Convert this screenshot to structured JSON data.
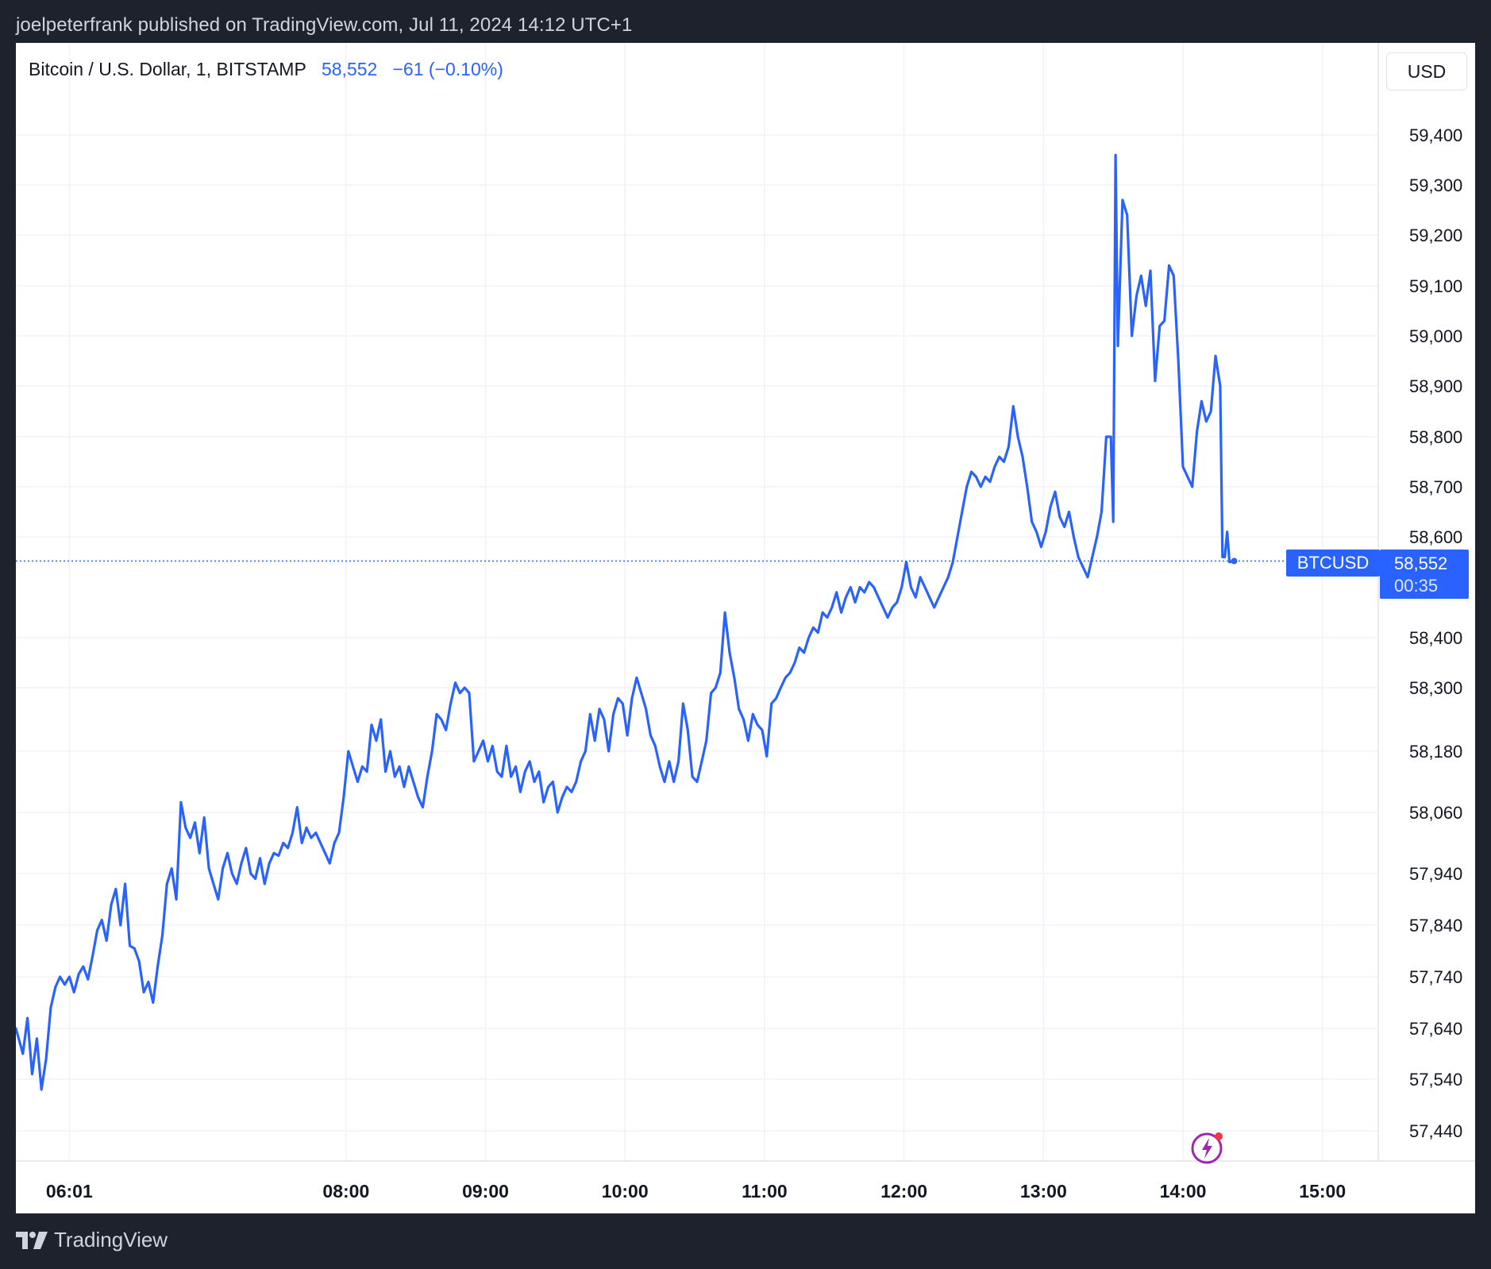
{
  "header": {
    "published_line": "joelpeterfrank published on TradingView.com, Jul 11, 2024 14:12 UTC+1"
  },
  "legend": {
    "symbol_description": "Bitcoin / U.S. Dollar, 1, BITSTAMP",
    "last_price": "58,552",
    "change": "−61 (−0.10%)"
  },
  "currency_button": {
    "label": "USD"
  },
  "price_label": {
    "symbol": "BTCUSD",
    "price": "58,552",
    "countdown": "00:35"
  },
  "footer": {
    "brand": "TradingView"
  },
  "icons": {
    "alert": "lightning-alert-icon",
    "brand": "tradingview-logo-icon"
  },
  "colors": {
    "line": "#2962ff",
    "grid": "#f0f3fa",
    "background_outer": "#1e222d",
    "alert_icon": "#9c27b0",
    "alert_dot": "#f23645"
  },
  "chart_data": {
    "type": "line",
    "title": "Bitcoin / U.S. Dollar, 1, BITSTAMP",
    "xlabel": "",
    "ylabel": "",
    "ylim": [
      57360,
      59520
    ],
    "y_ticks": [
      59400,
      59300,
      59200,
      59100,
      59000,
      58900,
      58800,
      58700,
      58600,
      58400,
      58300,
      58180,
      58060,
      57940,
      57840,
      57740,
      57640,
      57540,
      57440
    ],
    "y_tick_labels": [
      "59,400",
      "59,300",
      "59,200",
      "59,100",
      "59,000",
      "58,900",
      "58,800",
      "58,700",
      "58,600",
      "58,400",
      "58,300",
      "58,180",
      "58,060",
      "57,940",
      "57,840",
      "57,740",
      "57,640",
      "57,540",
      "57,440"
    ],
    "x_tick_labels": [
      {
        "label": "06:01",
        "t": "06:01",
        "bold": true
      },
      {
        "label": "08:00",
        "t": "08:00",
        "bold": true
      },
      {
        "label": "09:00",
        "t": "09:00",
        "bold": true
      },
      {
        "label": "10:00",
        "t": "10:00",
        "bold": true
      },
      {
        "label": "11:00",
        "t": "11:00",
        "bold": true
      },
      {
        "label": "12:00",
        "t": "12:00",
        "bold": true
      },
      {
        "label": "13:00",
        "t": "13:00",
        "bold": true
      },
      {
        "label": "14:00",
        "t": "14:00",
        "bold": true
      },
      {
        "label": "15:00",
        "t": "15:00",
        "bold": true
      }
    ],
    "x_range": [
      "05:38",
      "15:24"
    ],
    "grid": true,
    "last_price": 58552,
    "series": [
      {
        "name": "BTCUSD",
        "points": [
          [
            "05:38",
            57640
          ],
          [
            "05:41",
            57590
          ],
          [
            "05:43",
            57660
          ],
          [
            "05:45",
            57550
          ],
          [
            "05:47",
            57620
          ],
          [
            "05:49",
            57520
          ],
          [
            "05:51",
            57580
          ],
          [
            "05:53",
            57680
          ],
          [
            "05:55",
            57720
          ],
          [
            "05:57",
            57740
          ],
          [
            "05:59",
            57725
          ],
          [
            "06:01",
            57740
          ],
          [
            "06:03",
            57710
          ],
          [
            "06:05",
            57745
          ],
          [
            "06:07",
            57760
          ],
          [
            "06:09",
            57735
          ],
          [
            "06:11",
            57780
          ],
          [
            "06:13",
            57830
          ],
          [
            "06:15",
            57850
          ],
          [
            "06:17",
            57810
          ],
          [
            "06:19",
            57880
          ],
          [
            "06:21",
            57910
          ],
          [
            "06:23",
            57840
          ],
          [
            "06:25",
            57920
          ],
          [
            "06:27",
            57800
          ],
          [
            "06:29",
            57795
          ],
          [
            "06:31",
            57770
          ],
          [
            "06:33",
            57710
          ],
          [
            "06:35",
            57730
          ],
          [
            "06:37",
            57690
          ],
          [
            "06:39",
            57760
          ],
          [
            "06:41",
            57820
          ],
          [
            "06:43",
            57920
          ],
          [
            "06:45",
            57950
          ],
          [
            "06:47",
            57890
          ],
          [
            "06:49",
            58080
          ],
          [
            "06:51",
            58030
          ],
          [
            "06:53",
            58010
          ],
          [
            "06:55",
            58040
          ],
          [
            "06:57",
            57980
          ],
          [
            "06:59",
            58050
          ],
          [
            "07:01",
            57950
          ],
          [
            "07:03",
            57920
          ],
          [
            "07:05",
            57890
          ],
          [
            "07:07",
            57950
          ],
          [
            "07:09",
            57980
          ],
          [
            "07:11",
            57940
          ],
          [
            "07:13",
            57920
          ],
          [
            "07:15",
            57960
          ],
          [
            "07:17",
            57990
          ],
          [
            "07:19",
            57940
          ],
          [
            "07:21",
            57930
          ],
          [
            "07:23",
            57970
          ],
          [
            "07:25",
            57920
          ],
          [
            "07:27",
            57960
          ],
          [
            "07:29",
            57980
          ],
          [
            "07:31",
            57975
          ],
          [
            "07:33",
            58000
          ],
          [
            "07:35",
            57990
          ],
          [
            "07:37",
            58020
          ],
          [
            "07:39",
            58070
          ],
          [
            "07:41",
            58000
          ],
          [
            "07:43",
            58030
          ],
          [
            "07:45",
            58010
          ],
          [
            "07:47",
            58020
          ],
          [
            "07:49",
            58000
          ],
          [
            "07:51",
            57980
          ],
          [
            "07:53",
            57960
          ],
          [
            "07:55",
            58000
          ],
          [
            "07:57",
            58020
          ],
          [
            "07:59",
            58090
          ],
          [
            "08:01",
            58180
          ],
          [
            "08:03",
            58150
          ],
          [
            "08:05",
            58120
          ],
          [
            "08:07",
            58150
          ],
          [
            "08:09",
            58140
          ],
          [
            "08:11",
            58230
          ],
          [
            "08:13",
            58200
          ],
          [
            "08:15",
            58240
          ],
          [
            "08:17",
            58140
          ],
          [
            "08:19",
            58180
          ],
          [
            "08:21",
            58130
          ],
          [
            "08:23",
            58150
          ],
          [
            "08:25",
            58110
          ],
          [
            "08:27",
            58150
          ],
          [
            "08:29",
            58120
          ],
          [
            "08:31",
            58090
          ],
          [
            "08:33",
            58070
          ],
          [
            "08:35",
            58130
          ],
          [
            "08:37",
            58180
          ],
          [
            "08:39",
            58250
          ],
          [
            "08:41",
            58240
          ],
          [
            "08:43",
            58220
          ],
          [
            "08:45",
            58270
          ],
          [
            "08:47",
            58310
          ],
          [
            "08:49",
            58290
          ],
          [
            "08:51",
            58300
          ],
          [
            "08:53",
            58290
          ],
          [
            "08:55",
            58160
          ],
          [
            "08:57",
            58180
          ],
          [
            "08:59",
            58200
          ],
          [
            "09:01",
            58160
          ],
          [
            "09:03",
            58190
          ],
          [
            "09:05",
            58140
          ],
          [
            "09:07",
            58130
          ],
          [
            "09:09",
            58190
          ],
          [
            "09:11",
            58130
          ],
          [
            "09:13",
            58150
          ],
          [
            "09:15",
            58100
          ],
          [
            "09:17",
            58140
          ],
          [
            "09:19",
            58160
          ],
          [
            "09:21",
            58120
          ],
          [
            "09:23",
            58140
          ],
          [
            "09:25",
            58080
          ],
          [
            "09:27",
            58110
          ],
          [
            "09:29",
            58120
          ],
          [
            "09:31",
            58060
          ],
          [
            "09:33",
            58090
          ],
          [
            "09:35",
            58110
          ],
          [
            "09:37",
            58100
          ],
          [
            "09:39",
            58120
          ],
          [
            "09:41",
            58160
          ],
          [
            "09:43",
            58180
          ],
          [
            "09:45",
            58250
          ],
          [
            "09:47",
            58200
          ],
          [
            "09:49",
            58260
          ],
          [
            "09:51",
            58240
          ],
          [
            "09:53",
            58180
          ],
          [
            "09:55",
            58250
          ],
          [
            "09:57",
            58280
          ],
          [
            "09:59",
            58270
          ],
          [
            "10:01",
            58210
          ],
          [
            "10:03",
            58280
          ],
          [
            "10:05",
            58320
          ],
          [
            "10:07",
            58290
          ],
          [
            "10:09",
            58260
          ],
          [
            "10:11",
            58210
          ],
          [
            "10:13",
            58190
          ],
          [
            "10:15",
            58150
          ],
          [
            "10:17",
            58120
          ],
          [
            "10:19",
            58160
          ],
          [
            "10:21",
            58120
          ],
          [
            "10:23",
            58160
          ],
          [
            "10:25",
            58270
          ],
          [
            "10:27",
            58220
          ],
          [
            "10:29",
            58130
          ],
          [
            "10:31",
            58120
          ],
          [
            "10:33",
            58160
          ],
          [
            "10:35",
            58200
          ],
          [
            "10:37",
            58290
          ],
          [
            "10:39",
            58300
          ],
          [
            "10:41",
            58330
          ],
          [
            "10:43",
            58450
          ],
          [
            "10:45",
            58370
          ],
          [
            "10:47",
            58320
          ],
          [
            "10:49",
            58260
          ],
          [
            "10:51",
            58240
          ],
          [
            "10:53",
            58200
          ],
          [
            "10:55",
            58250
          ],
          [
            "10:57",
            58230
          ],
          [
            "10:59",
            58220
          ],
          [
            "11:01",
            58170
          ],
          [
            "11:03",
            58270
          ],
          [
            "11:05",
            58280
          ],
          [
            "11:07",
            58300
          ],
          [
            "11:09",
            58320
          ],
          [
            "11:11",
            58330
          ],
          [
            "11:13",
            58350
          ],
          [
            "11:15",
            58380
          ],
          [
            "11:17",
            58370
          ],
          [
            "11:19",
            58400
          ],
          [
            "11:21",
            58420
          ],
          [
            "11:23",
            58410
          ],
          [
            "11:25",
            58450
          ],
          [
            "11:27",
            58440
          ],
          [
            "11:29",
            58460
          ],
          [
            "11:31",
            58490
          ],
          [
            "11:33",
            58450
          ],
          [
            "11:35",
            58480
          ],
          [
            "11:37",
            58500
          ],
          [
            "11:39",
            58470
          ],
          [
            "11:41",
            58500
          ],
          [
            "11:43",
            58490
          ],
          [
            "11:45",
            58510
          ],
          [
            "11:47",
            58500
          ],
          [
            "11:49",
            58480
          ],
          [
            "11:51",
            58460
          ],
          [
            "11:53",
            58440
          ],
          [
            "11:55",
            58460
          ],
          [
            "11:57",
            58470
          ],
          [
            "11:59",
            58500
          ],
          [
            "12:01",
            58550
          ],
          [
            "12:03",
            58500
          ],
          [
            "12:05",
            58480
          ],
          [
            "12:07",
            58520
          ],
          [
            "12:09",
            58500
          ],
          [
            "12:11",
            58480
          ],
          [
            "12:13",
            58460
          ],
          [
            "12:15",
            58480
          ],
          [
            "12:17",
            58500
          ],
          [
            "12:19",
            58520
          ],
          [
            "12:21",
            58550
          ],
          [
            "12:23",
            58600
          ],
          [
            "12:25",
            58650
          ],
          [
            "12:27",
            58700
          ],
          [
            "12:29",
            58730
          ],
          [
            "12:31",
            58720
          ],
          [
            "12:33",
            58700
          ],
          [
            "12:35",
            58720
          ],
          [
            "12:37",
            58710
          ],
          [
            "12:39",
            58740
          ],
          [
            "12:41",
            58760
          ],
          [
            "12:43",
            58750
          ],
          [
            "12:45",
            58780
          ],
          [
            "12:47",
            58860
          ],
          [
            "12:49",
            58800
          ],
          [
            "12:51",
            58760
          ],
          [
            "12:53",
            58700
          ],
          [
            "12:55",
            58630
          ],
          [
            "12:57",
            58610
          ],
          [
            "12:59",
            58580
          ],
          [
            "13:01",
            58610
          ],
          [
            "13:03",
            58660
          ],
          [
            "13:05",
            58690
          ],
          [
            "13:07",
            58640
          ],
          [
            "13:09",
            58620
          ],
          [
            "13:11",
            58650
          ],
          [
            "13:13",
            58600
          ],
          [
            "13:15",
            58560
          ],
          [
            "13:17",
            58540
          ],
          [
            "13:19",
            58520
          ],
          [
            "13:21",
            58560
          ],
          [
            "13:23",
            58600
          ],
          [
            "13:25",
            58650
          ],
          [
            "13:27",
            58800
          ],
          [
            "13:29",
            58800
          ],
          [
            "13:30",
            58630
          ],
          [
            "13:31",
            59360
          ],
          [
            "13:32",
            58980
          ],
          [
            "13:34",
            59270
          ],
          [
            "13:36",
            59240
          ],
          [
            "13:38",
            59000
          ],
          [
            "13:40",
            59080
          ],
          [
            "13:42",
            59120
          ],
          [
            "13:44",
            59060
          ],
          [
            "13:46",
            59130
          ],
          [
            "13:48",
            58910
          ],
          [
            "13:50",
            59020
          ],
          [
            "13:52",
            59030
          ],
          [
            "13:54",
            59140
          ],
          [
            "13:56",
            59120
          ],
          [
            "13:58",
            58950
          ],
          [
            "14:00",
            58740
          ],
          [
            "14:02",
            58720
          ],
          [
            "14:04",
            58700
          ],
          [
            "14:06",
            58810
          ],
          [
            "14:08",
            58870
          ],
          [
            "14:10",
            58830
          ],
          [
            "14:12",
            58850
          ],
          [
            "14:14",
            58960
          ],
          [
            "14:16",
            58900
          ],
          [
            "14:17",
            58560
          ],
          [
            "14:18",
            58560
          ],
          [
            "14:19",
            58610
          ],
          [
            "14:20",
            58550
          ],
          [
            "14:22",
            58552
          ]
        ]
      }
    ]
  }
}
